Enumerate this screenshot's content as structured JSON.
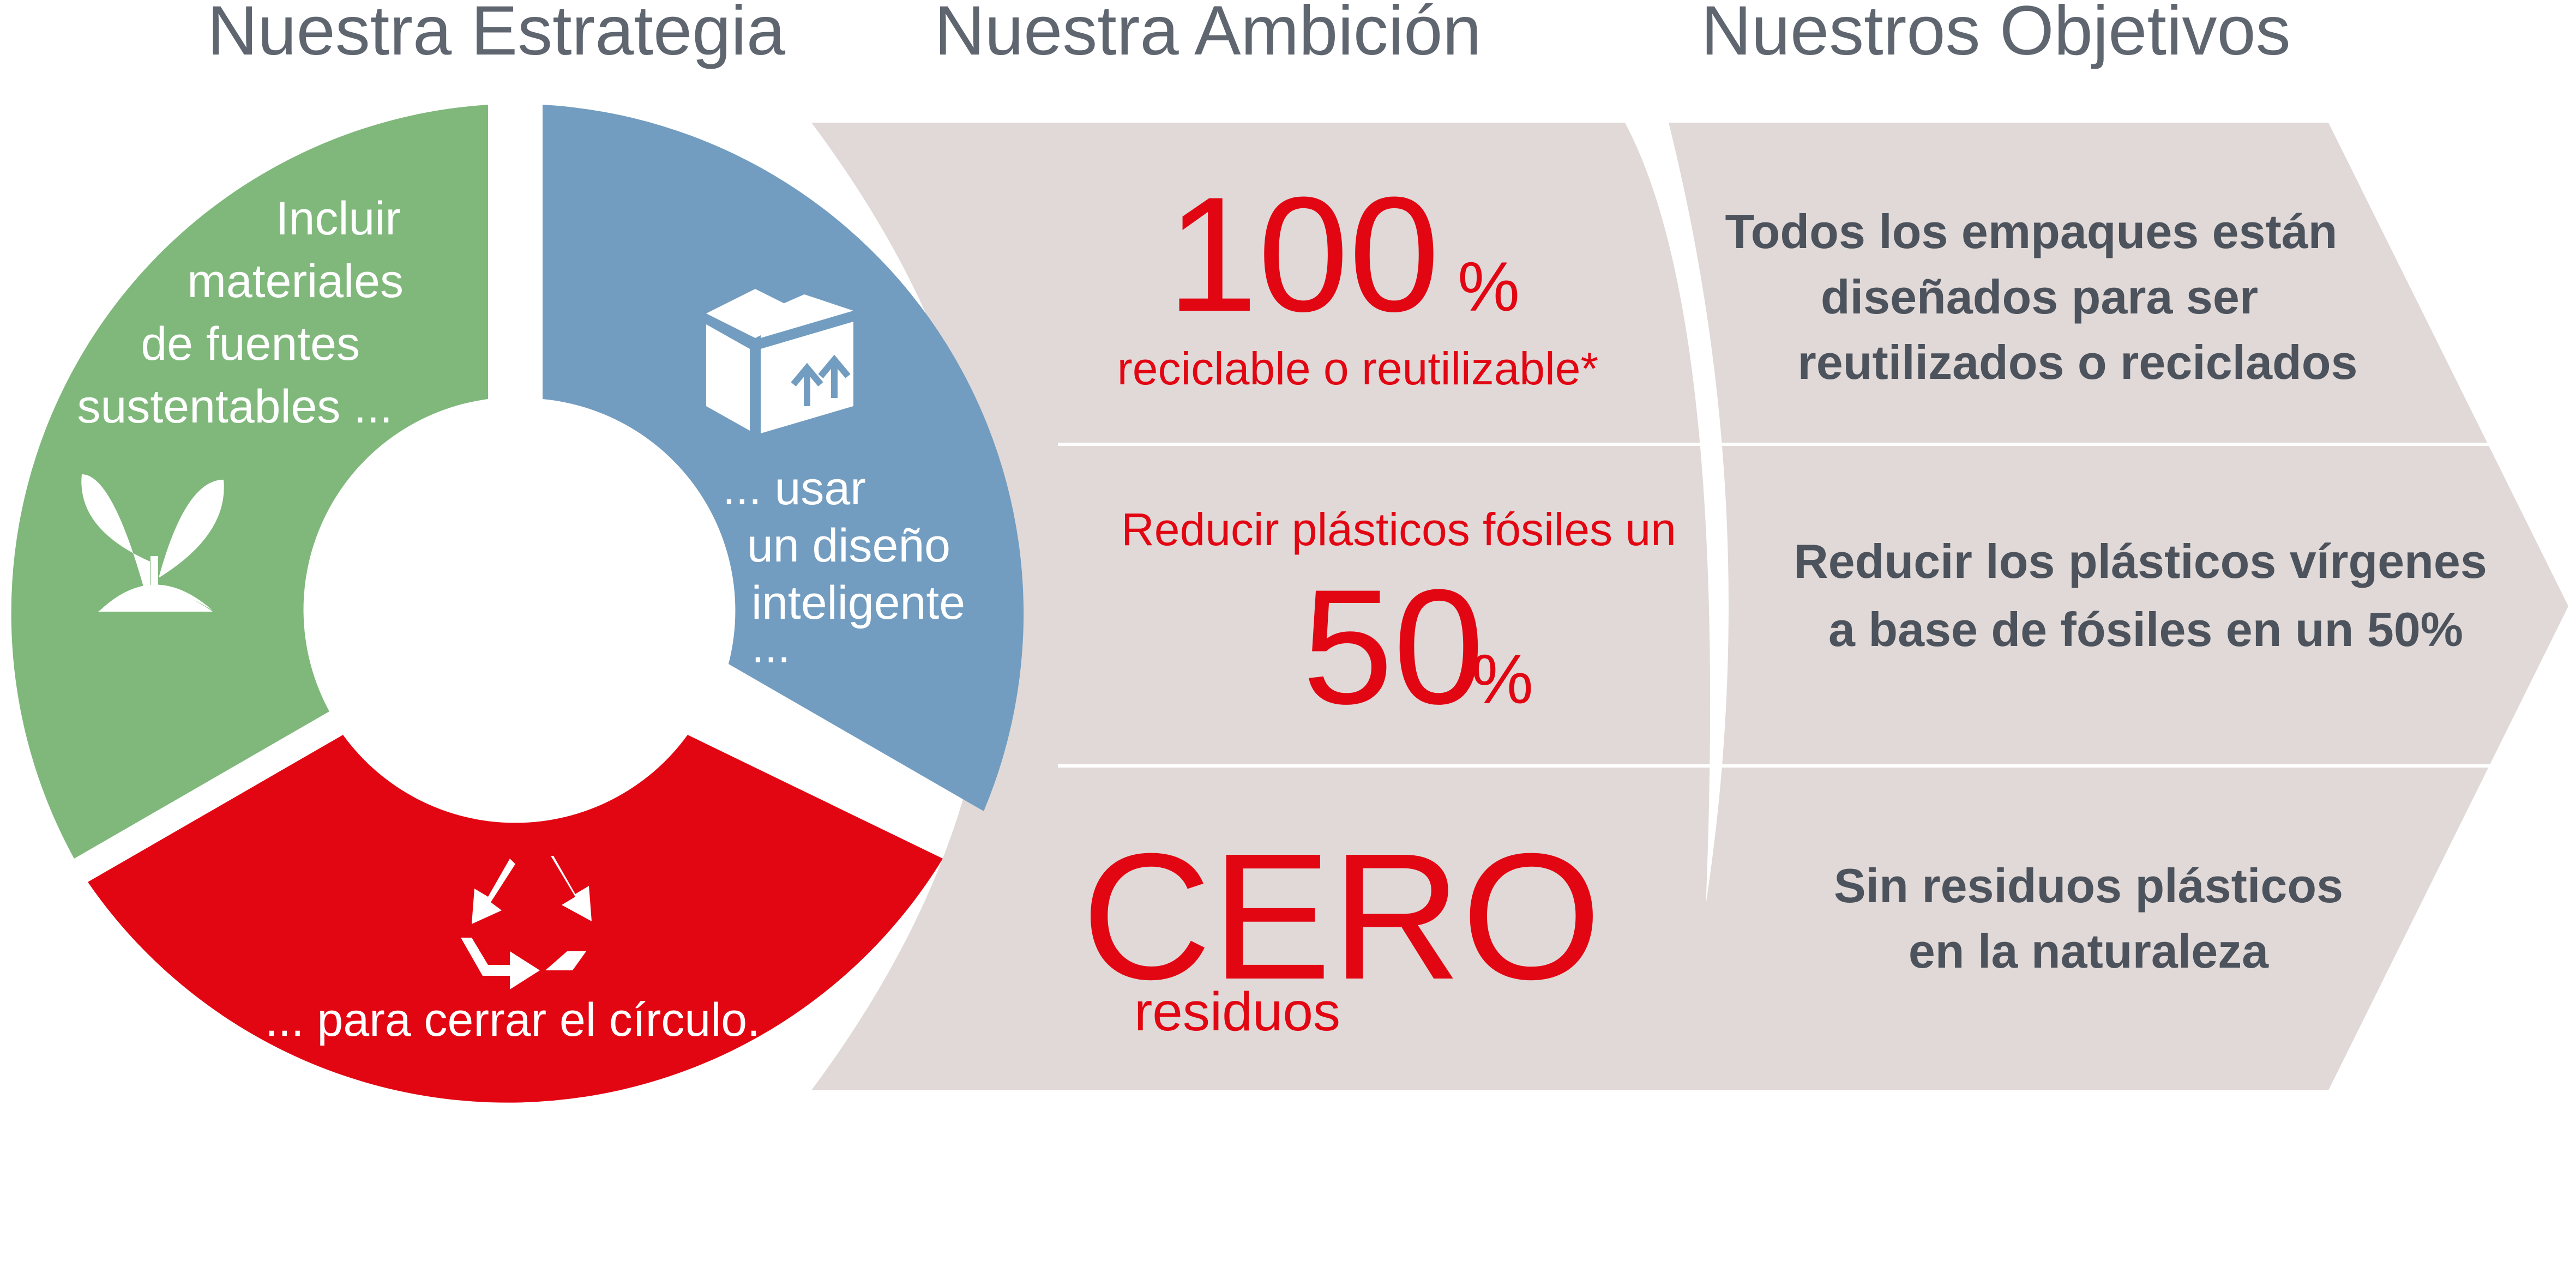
{
  "headers": {
    "strategy": "Nuestra Estrategia",
    "ambition": "Nuestra Ambición",
    "objectives": "Nuestros Objetivos"
  },
  "strategy": {
    "green": {
      "lines": [
        "Incluir",
        "materiales",
        "de fuentes",
        "sustentables ..."
      ],
      "icon": "sprout-icon",
      "color": "#80b87c"
    },
    "blue": {
      "lines": [
        "... usar",
        "un diseño",
        "inteligente",
        "..."
      ],
      "icon": "package-box-icon",
      "color": "#729dc0"
    },
    "red": {
      "lines": [
        "... para cerrar el círculo."
      ],
      "icon": "recycle-icon",
      "color": "#e20613"
    }
  },
  "ambition": {
    "row1": {
      "number": "100",
      "unit": "%",
      "caption": "reciclable o reutilizable*"
    },
    "row2": {
      "caption": "Reducir plásticos fósiles un",
      "number": "50",
      "unit": "%"
    },
    "row3": {
      "number": "CERO",
      "caption": "residuos"
    }
  },
  "objectives": [
    {
      "lines": [
        "Todos los empaques están",
        "diseñados para ser",
        "reutilizados o reciclados"
      ]
    },
    {
      "lines": [
        "Reducir los plásticos vírgenes",
        "a base de fósiles en un 50%"
      ]
    },
    {
      "lines": [
        "Sin residuos plásticos",
        "en la naturaleza"
      ]
    }
  ],
  "colors": {
    "panel": "#e0d9d7",
    "accent_red": "#e20613",
    "header_text": "#5f6670",
    "objective_text": "#4d535c"
  }
}
